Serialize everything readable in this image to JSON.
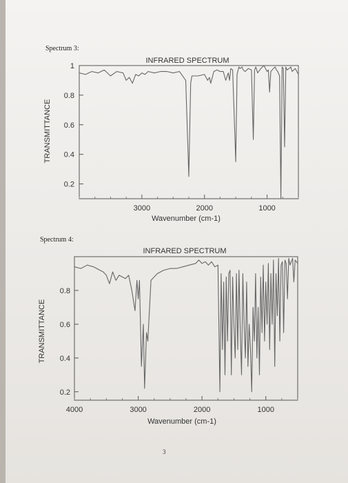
{
  "page": {
    "page_number": "3"
  },
  "spectrum3": {
    "label": "Spectrum 3:"
  },
  "spectrum4": {
    "label": "Spectrum 4:"
  },
  "chart_data": [
    {
      "type": "line",
      "title": "INFRARED SPECTRUM",
      "xlabel": "Wavenumber (cm-1)",
      "ylabel": "TRANSMITTANCE",
      "xlim": [
        4000,
        500
      ],
      "ylim": [
        0.1,
        1.0
      ],
      "x_ticks": [
        3000,
        2000,
        1000
      ],
      "y_ticks": [
        1,
        0.8,
        0.6,
        0.4,
        0.2
      ],
      "x_tick_labels": [
        "3000",
        "2000",
        "1000"
      ],
      "y_tick_labels": [
        "1",
        "0.8",
        "0.6",
        "0.4",
        "0.2"
      ],
      "grid": false,
      "series": [
        {
          "x": [
            4000,
            3900,
            3800,
            3700,
            3600,
            3500,
            3400,
            3300,
            3250,
            3200,
            3150,
            3100,
            3050,
            3000,
            2950,
            2900,
            2800,
            2700,
            2600,
            2500,
            2400,
            2300,
            2250,
            2220,
            2200,
            2100,
            2000,
            1950,
            1920,
            1900,
            1850,
            1800,
            1750,
            1700,
            1660,
            1620,
            1600,
            1580,
            1550,
            1500,
            1480,
            1450,
            1430,
            1400,
            1380,
            1350,
            1300,
            1250,
            1220,
            1200,
            1180,
            1150,
            1100,
            1050,
            1000,
            980,
            960,
            940,
            900,
            870,
            850,
            830,
            800,
            780,
            760,
            740,
            720,
            700,
            680,
            650,
            620,
            600,
            550,
            500
          ],
          "y": [
            0.95,
            0.94,
            0.96,
            0.95,
            0.97,
            0.93,
            0.96,
            0.95,
            0.9,
            0.92,
            0.88,
            0.94,
            0.93,
            0.95,
            0.94,
            0.96,
            0.95,
            0.96,
            0.96,
            0.95,
            0.96,
            0.9,
            0.25,
            0.88,
            0.93,
            0.93,
            0.94,
            0.9,
            0.92,
            0.88,
            0.96,
            0.97,
            0.96,
            0.96,
            0.9,
            0.95,
            0.9,
            0.98,
            0.97,
            0.35,
            0.94,
            0.99,
            0.98,
            0.99,
            0.97,
            0.96,
            0.98,
            0.97,
            0.5,
            0.97,
            0.99,
            0.95,
            0.98,
            1.0,
            0.96,
            0.97,
            0.82,
            0.96,
            0.98,
            0.99,
            0.97,
            0.96,
            0.93,
            0.1,
            0.99,
            0.98,
            0.45,
            0.99,
            0.97,
            0.98,
            0.99,
            0.96,
            0.98,
            0.94
          ]
        }
      ]
    },
    {
      "type": "line",
      "title": "INFRARED SPECTRUM",
      "xlabel": "Wavenumber (cm-1)",
      "ylabel": "TRANSMITTANCE",
      "xlim": [
        4000,
        500
      ],
      "ylim": [
        0.15,
        1.0
      ],
      "x_ticks": [
        4000,
        3000,
        2000,
        1000
      ],
      "y_ticks": [
        0.8,
        0.6,
        0.4,
        0.2
      ],
      "x_tick_labels": [
        "4000",
        "3000",
        "2000",
        "1000"
      ],
      "y_tick_labels": [
        "0.8",
        "0.6",
        "0.4",
        "0.2"
      ],
      "grid": false,
      "series": [
        {
          "x": [
            4000,
            3900,
            3800,
            3700,
            3650,
            3600,
            3550,
            3500,
            3450,
            3400,
            3350,
            3300,
            3250,
            3200,
            3150,
            3100,
            3050,
            3020,
            3000,
            2980,
            2950,
            2920,
            2900,
            2870,
            2850,
            2800,
            2700,
            2600,
            2500,
            2400,
            2300,
            2200,
            2100,
            2050,
            2000,
            1950,
            1900,
            1850,
            1800,
            1750,
            1720,
            1700,
            1680,
            1660,
            1640,
            1620,
            1600,
            1580,
            1560,
            1540,
            1520,
            1500,
            1480,
            1460,
            1440,
            1420,
            1400,
            1380,
            1360,
            1340,
            1320,
            1300,
            1280,
            1260,
            1240,
            1220,
            1200,
            1180,
            1160,
            1140,
            1120,
            1100,
            1080,
            1060,
            1040,
            1020,
            1000,
            980,
            960,
            940,
            920,
            900,
            880,
            860,
            840,
            820,
            800,
            780,
            760,
            740,
            720,
            700,
            680,
            660,
            640,
            620,
            600,
            580,
            560,
            540,
            520,
            500
          ],
          "y": [
            0.94,
            0.93,
            0.95,
            0.94,
            0.93,
            0.92,
            0.91,
            0.89,
            0.84,
            0.91,
            0.86,
            0.89,
            0.88,
            0.87,
            0.89,
            0.8,
            0.68,
            0.86,
            0.75,
            0.86,
            0.35,
            0.6,
            0.22,
            0.55,
            0.5,
            0.86,
            0.9,
            0.92,
            0.93,
            0.93,
            0.94,
            0.95,
            0.96,
            0.98,
            0.96,
            0.97,
            0.95,
            0.97,
            0.94,
            0.95,
            0.2,
            0.9,
            0.45,
            0.85,
            0.3,
            0.88,
            0.5,
            0.9,
            0.92,
            0.3,
            0.88,
            0.6,
            0.4,
            0.9,
            0.45,
            0.92,
            0.55,
            0.3,
            0.9,
            0.6,
            0.4,
            0.85,
            0.35,
            0.6,
            0.45,
            0.2,
            0.7,
            0.5,
            0.9,
            0.4,
            0.7,
            0.3,
            0.88,
            0.55,
            0.95,
            0.5,
            0.85,
            0.6,
            0.96,
            0.45,
            0.9,
            0.6,
            0.98,
            0.35,
            0.9,
            0.65,
            0.99,
            0.5,
            0.95,
            0.97,
            0.55,
            0.98,
            0.96,
            0.75,
            0.99,
            0.95,
            0.97,
            0.99,
            0.85,
            0.98,
            0.97,
            0.96
          ]
        }
      ]
    }
  ]
}
